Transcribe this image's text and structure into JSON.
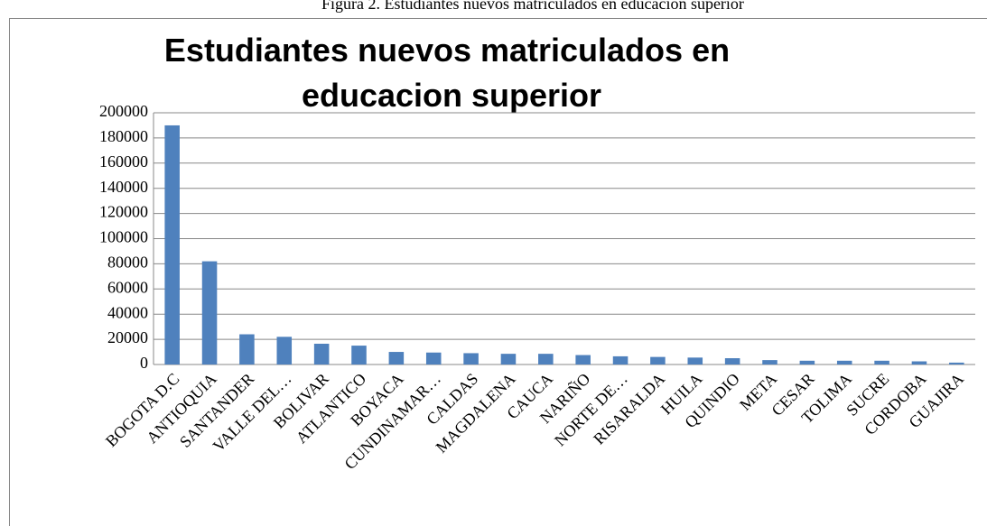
{
  "caption": "Figura 2. Estudiantes nuevos matriculados en educación superior",
  "chart_data": {
    "type": "bar",
    "title": "Estudiantes nuevos matriculados en educacion superior",
    "categories": [
      "BOGOTA D.C",
      "ANTIOQUIA",
      "SANTANDER",
      "VALLE DEL…",
      "BOLIVAR",
      "ATLANTICO",
      "BOYACA",
      "CUNDINAMAR…",
      "CALDAS",
      "MAGDALENA",
      "CAUCA",
      "NARIÑO",
      "NORTE DE…",
      "RISARALDA",
      "HUILA",
      "QUINDIO",
      "META",
      "CESAR",
      "TOLIMA",
      "SUCRE",
      "CORDOBA",
      "GUAJIRA"
    ],
    "values": [
      190000,
      82000,
      24000,
      22000,
      16500,
      15000,
      10000,
      9500,
      9000,
      8500,
      8500,
      7500,
      6500,
      6000,
      5500,
      5000,
      3500,
      3000,
      3000,
      3000,
      2500,
      1500
    ],
    "color": "#4f81bd",
    "ylim": [
      0,
      200000
    ],
    "yticks": [
      0,
      20000,
      40000,
      60000,
      80000,
      100000,
      120000,
      140000,
      160000,
      180000,
      200000
    ],
    "grid": true
  }
}
